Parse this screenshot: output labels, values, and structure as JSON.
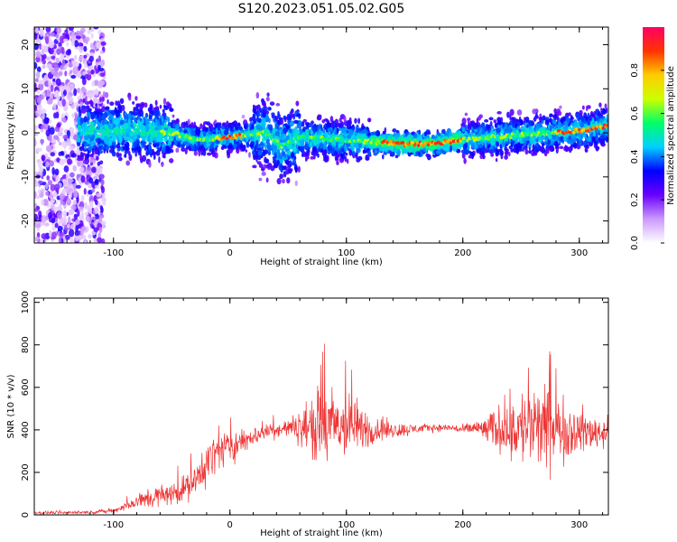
{
  "figure": {
    "title": "S120.2023.051.05.02.G05"
  },
  "chart_data": [
    {
      "type": "heatmap",
      "xlabel": "Height of straight line (km)",
      "ylabel": "Frequency (Hz)",
      "xlim": [
        -168,
        325
      ],
      "ylim": [
        -25,
        24
      ],
      "x_ticks": [
        "-100",
        "0",
        "100",
        "200",
        "300"
      ],
      "x_tick_values": [
        -100,
        0,
        100,
        200,
        300
      ],
      "y_ticks": [
        "-20",
        "-10",
        "0",
        "10",
        "20"
      ],
      "y_tick_values": [
        -20,
        -10,
        0,
        10,
        20
      ],
      "ridge_frequency_hz": [
        [
          -90,
          0.5
        ],
        [
          -50,
          0
        ],
        [
          -30,
          -1.5
        ],
        [
          0,
          -1
        ],
        [
          30,
          0
        ],
        [
          45,
          -3
        ],
        [
          60,
          -1
        ],
        [
          90,
          -1.5
        ],
        [
          150,
          -2.5
        ],
        [
          175,
          -2.5
        ],
        [
          200,
          -1.5
        ],
        [
          250,
          -0.5
        ],
        [
          300,
          0.5
        ],
        [
          325,
          1.5
        ]
      ],
      "colorbar": {
        "label": "Normalized spectral amplitude",
        "range": [
          0,
          1
        ],
        "ticks": [
          "0.0",
          "0.2",
          "0.4",
          "0.6",
          "0.8"
        ],
        "tick_values": [
          0,
          0.2,
          0.4,
          0.6,
          0.8
        ],
        "colormap": [
          "#ffffff",
          "#cc99ff",
          "#6a00ff",
          "#0000ff",
          "#00d0ff",
          "#00ff66",
          "#ccff00",
          "#ffcc00",
          "#ff3300",
          "#ff0066"
        ]
      },
      "grid": false
    },
    {
      "type": "line",
      "xlabel": "Height of straight line (km)",
      "ylabel": "SNR (10 * v/v)",
      "xlim": [
        -168,
        325
      ],
      "ylim": [
        0,
        1020
      ],
      "x_ticks": [
        "-100",
        "0",
        "100",
        "200",
        "300"
      ],
      "x_tick_values": [
        -100,
        0,
        100,
        200,
        300
      ],
      "y_ticks": [
        "0",
        "200",
        "400",
        "600",
        "800",
        "1000"
      ],
      "y_tick_values": [
        0,
        200,
        400,
        600,
        800,
        1000
      ],
      "series": [
        {
          "color": "#ee3333",
          "envelope": [
            [
              -168,
              10,
              8
            ],
            [
              -120,
              12,
              8
            ],
            [
              -100,
              20,
              10
            ],
            [
              -80,
              60,
              40
            ],
            [
              -70,
              80,
              60
            ],
            [
              -50,
              100,
              60
            ],
            [
              -30,
              150,
              80
            ],
            [
              -20,
              250,
              120
            ],
            [
              -10,
              300,
              100
            ],
            [
              0,
              320,
              90
            ],
            [
              10,
              340,
              70
            ],
            [
              20,
              370,
              50
            ],
            [
              30,
              390,
              40
            ],
            [
              50,
              410,
              50
            ],
            [
              60,
              410,
              90
            ],
            [
              70,
              420,
              160
            ],
            [
              80,
              410,
              230
            ],
            [
              95,
              420,
              190
            ],
            [
              110,
              410,
              140
            ],
            [
              120,
              400,
              90
            ],
            [
              130,
              400,
              60
            ],
            [
              150,
              400,
              35
            ],
            [
              170,
              410,
              20
            ],
            [
              190,
              410,
              20
            ],
            [
              200,
              400,
              25
            ],
            [
              210,
              410,
              40
            ],
            [
              220,
              400,
              70
            ],
            [
              240,
              410,
              170
            ],
            [
              260,
              410,
              240
            ],
            [
              275,
              400,
              200
            ],
            [
              290,
              400,
              150
            ],
            [
              310,
              390,
              100
            ],
            [
              325,
              390,
              80
            ]
          ]
        }
      ],
      "grid": false
    }
  ]
}
